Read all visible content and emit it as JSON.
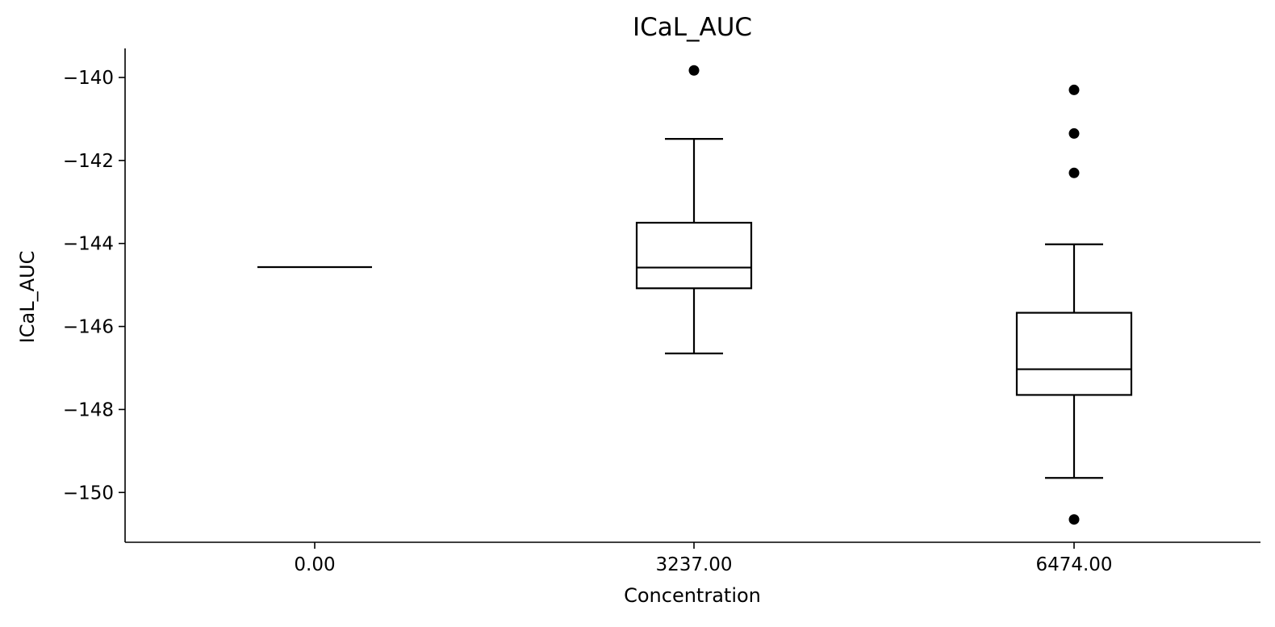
{
  "chart_data": {
    "type": "box",
    "title": "ICaL_AUC",
    "xlabel": "Concentration",
    "ylabel": "ICaL_AUC",
    "categories": [
      "0.00",
      "3237.00",
      "6474.00"
    ],
    "ylim": [
      -151.2,
      -139.3
    ],
    "yticks": [
      -140,
      -142,
      -144,
      -146,
      -148,
      -150
    ],
    "ytick_labels": [
      "−140",
      "−142",
      "−144",
      "−146",
      "−148",
      "−150"
    ],
    "grid": false,
    "boxes": [
      {
        "category": "0.00",
        "whisker_low": -144.57,
        "q1": -144.57,
        "median": -144.57,
        "q3": -144.57,
        "whisker_high": -144.57,
        "outliers": []
      },
      {
        "category": "3237.00",
        "whisker_low": -146.65,
        "q1": -145.08,
        "median": -144.58,
        "q3": -143.5,
        "whisker_high": -141.48,
        "outliers": [
          -139.83
        ]
      },
      {
        "category": "6474.00",
        "whisker_low": -149.65,
        "q1": -147.65,
        "median": -147.03,
        "q3": -145.67,
        "whisker_high": -144.02,
        "outliers": [
          -140.3,
          -141.35,
          -142.3,
          -150.65
        ]
      }
    ],
    "colors": {
      "line": "#000000",
      "background": "#ffffff"
    }
  }
}
